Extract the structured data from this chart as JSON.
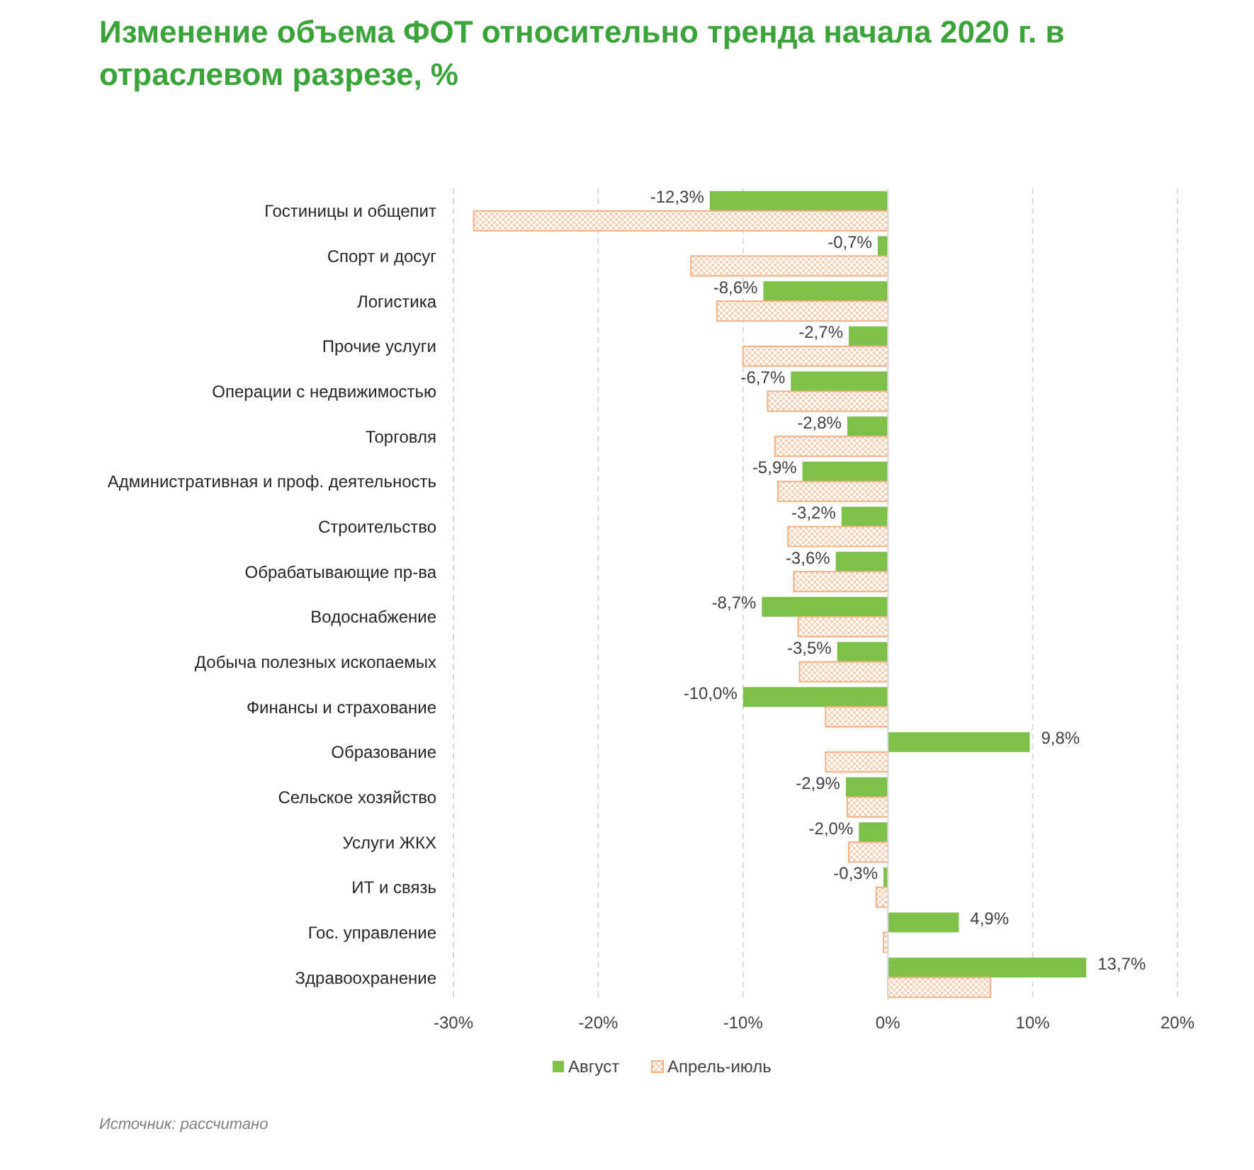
{
  "chart_data": {
    "type": "bar",
    "orientation": "horizontal",
    "title": "Изменение объема ФОТ относительно тренда начала 2020 г. в отраслевом разрезе, %",
    "categories": [
      "Гостиницы и общепит",
      "Спорт и досуг",
      "Логистика",
      "Прочие услуги",
      "Операции с недвижимостью",
      "Торговля",
      "Административная и проф. деятельность",
      "Строительство",
      "Обрабатывающие пр-ва",
      "Водоснабжение",
      "Добыча полезных ископаемых",
      "Финансы и страхование",
      "Образование",
      "Сельское хозяйство",
      "Услуги ЖКХ",
      "ИТ и связь",
      "Гос. управление",
      "Здравоохранение"
    ],
    "series": [
      {
        "name": "Август",
        "color": "#7dc14b",
        "values": [
          -12.3,
          -0.7,
          -8.6,
          -2.7,
          -6.7,
          -2.8,
          -5.9,
          -3.2,
          -3.6,
          -8.7,
          -3.5,
          -10.0,
          9.8,
          -2.9,
          -2.0,
          -0.3,
          4.9,
          13.7
        ],
        "value_labels": [
          "-12,3%",
          "-0,7%",
          "-8,6%",
          "-2,7%",
          "-6,7%",
          "-2,8%",
          "-5,9%",
          "-3,2%",
          "-3,6%",
          "-8,7%",
          "-3,5%",
          "-10,0%",
          "9,8%",
          "-2,9%",
          "-2,0%",
          "-0,3%",
          "4,9%",
          "13,7%"
        ]
      },
      {
        "name": "Апрель-июль",
        "color": "#f4b183",
        "values": [
          -28.6,
          -13.6,
          -11.8,
          -10.0,
          -8.3,
          -7.8,
          -7.6,
          -6.9,
          -6.5,
          -6.2,
          -6.1,
          -4.3,
          -4.3,
          -2.8,
          -2.7,
          -0.8,
          -0.3,
          7.1
        ]
      }
    ],
    "xlim": [
      -30,
      20
    ],
    "xticks": [
      {
        "value": -30,
        "label": "-30%"
      },
      {
        "value": -20,
        "label": "-20%"
      },
      {
        "value": -10,
        "label": "-10%"
      },
      {
        "value": 0,
        "label": "0%"
      },
      {
        "value": 10,
        "label": "10%"
      },
      {
        "value": 20,
        "label": "20%"
      }
    ],
    "grid": "x",
    "legend": "bottom",
    "annotations": [
      "Источник: рассчитано"
    ]
  }
}
